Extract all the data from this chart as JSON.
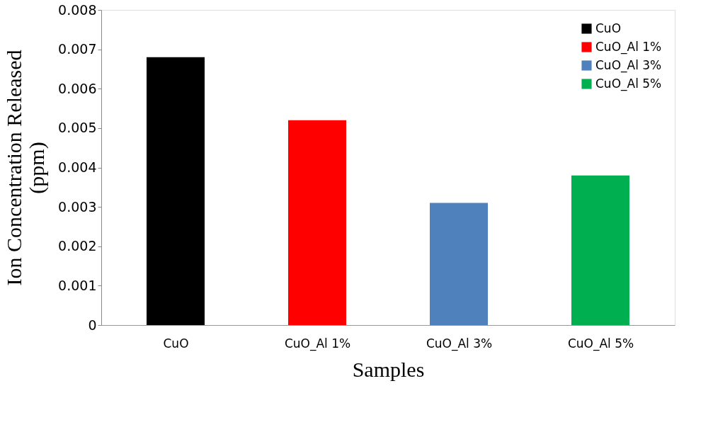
{
  "chart_data": {
    "type": "bar",
    "xlabel": "Samples",
    "ylabel": "Ion Concentration Released (ppm)",
    "categories": [
      "CuO",
      "CuO_Al 1%",
      "CuO_Al 3%",
      "CuO_Al 5%"
    ],
    "series": [
      {
        "name": "CuO",
        "color": "#000000",
        "values": [
          0.0068,
          null,
          null,
          null
        ]
      },
      {
        "name": "CuO_Al 1%",
        "color": "#ff0000",
        "values": [
          null,
          0.0052,
          null,
          null
        ]
      },
      {
        "name": "CuO_Al 3%",
        "color": "#4f81bd",
        "values": [
          null,
          null,
          0.0031,
          null
        ]
      },
      {
        "name": "CuO_Al 5%",
        "color": "#00b050",
        "values": [
          null,
          null,
          null,
          0.0038
        ]
      }
    ],
    "ylim": [
      0,
      0.008
    ],
    "yticks": [
      0,
      0.001,
      0.002,
      0.003,
      0.004,
      0.005,
      0.006,
      0.007,
      0.008
    ],
    "grid": false,
    "legend": "top right"
  }
}
